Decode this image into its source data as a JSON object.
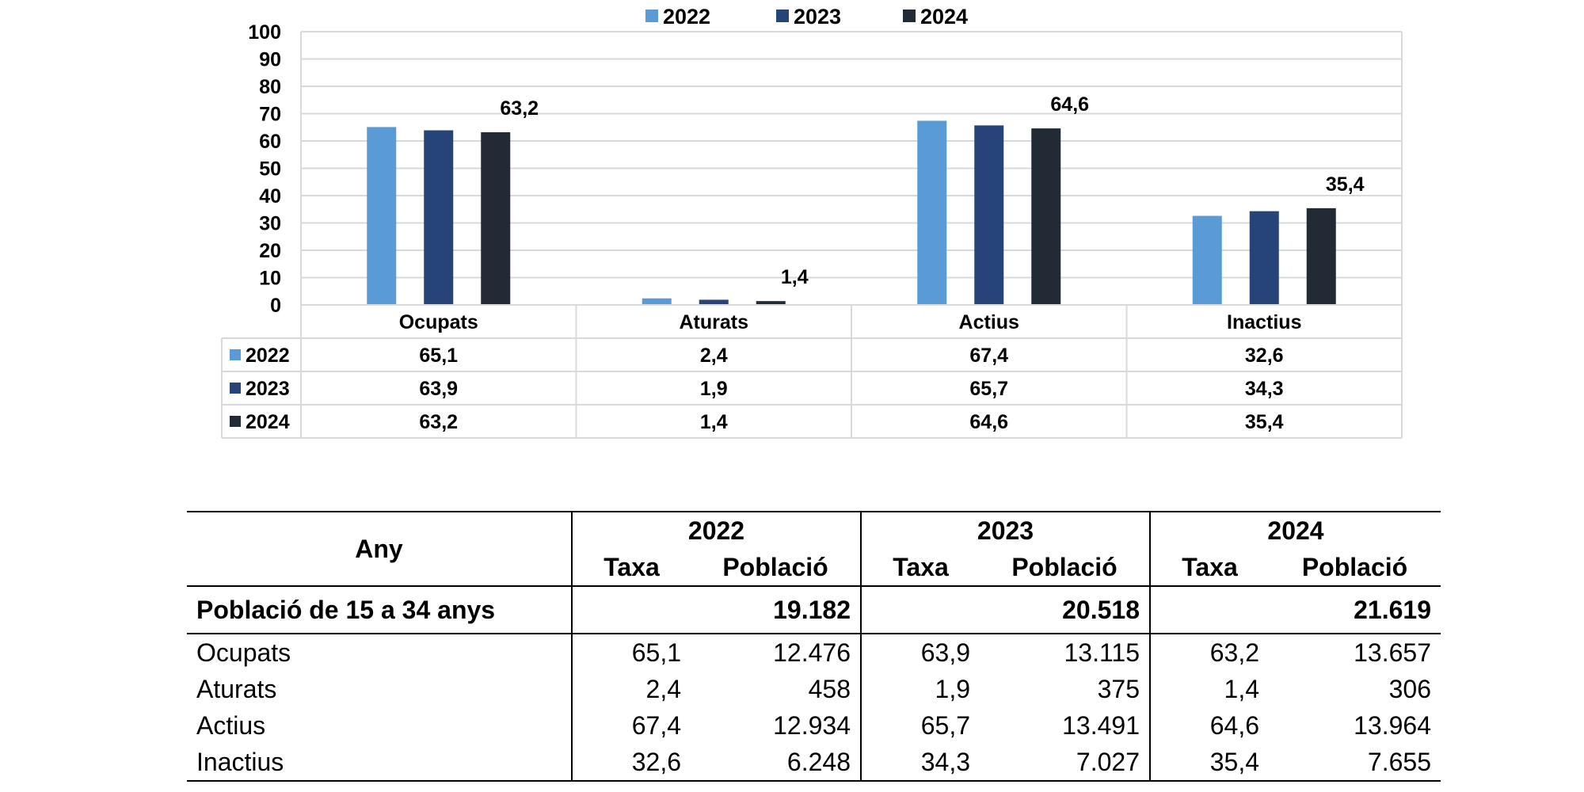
{
  "chart_data": {
    "type": "bar",
    "categories": [
      "Ocupats",
      "Aturats",
      "Actius",
      "Inactius"
    ],
    "series": [
      {
        "name": "2022",
        "color": "#5b9bd5",
        "values": [
          65.1,
          2.4,
          67.4,
          32.6
        ]
      },
      {
        "name": "2023",
        "color": "#264478",
        "values": [
          63.9,
          1.9,
          65.7,
          34.3
        ]
      },
      {
        "name": "2024",
        "color": "#222a35",
        "values": [
          63.2,
          1.4,
          64.6,
          35.4
        ]
      }
    ],
    "value_labels": [
      "63,2",
      "1,4",
      "64,6",
      "35,4"
    ],
    "data_table": [
      [
        "65,1",
        "2,4",
        "67,4",
        "32,6"
      ],
      [
        "63,9",
        "1,9",
        "65,7",
        "34,3"
      ],
      [
        "63,2",
        "1,4",
        "64,6",
        "35,4"
      ]
    ],
    "ylim": [
      0,
      100
    ],
    "yticks": [
      "0",
      "10",
      "20",
      "30",
      "40",
      "50",
      "60",
      "70",
      "80",
      "90",
      "100"
    ],
    "grid": true,
    "legend_position": "top-center"
  },
  "table": {
    "header_any": "Any",
    "years": [
      "2022",
      "2023",
      "2024"
    ],
    "col_taxa": "Taxa",
    "col_poblacio": "Població",
    "total_label": "Població de 15 a 34 anys",
    "total_values": [
      "19.182",
      "20.518",
      "21.619"
    ],
    "rows": [
      {
        "label": "Ocupats",
        "values": [
          "65,1",
          "12.476",
          "63,9",
          "13.115",
          "63,2",
          "13.657"
        ]
      },
      {
        "label": "Aturats",
        "values": [
          "2,4",
          "458",
          "1,9",
          "375",
          "1,4",
          "306"
        ]
      },
      {
        "label": "Actius",
        "values": [
          "67,4",
          "12.934",
          "65,7",
          "13.491",
          "64,6",
          "13.964"
        ]
      },
      {
        "label": "Inactius",
        "values": [
          "32,6",
          "6.248",
          "34,3",
          "7.027",
          "35,4",
          "7.655"
        ]
      }
    ]
  }
}
